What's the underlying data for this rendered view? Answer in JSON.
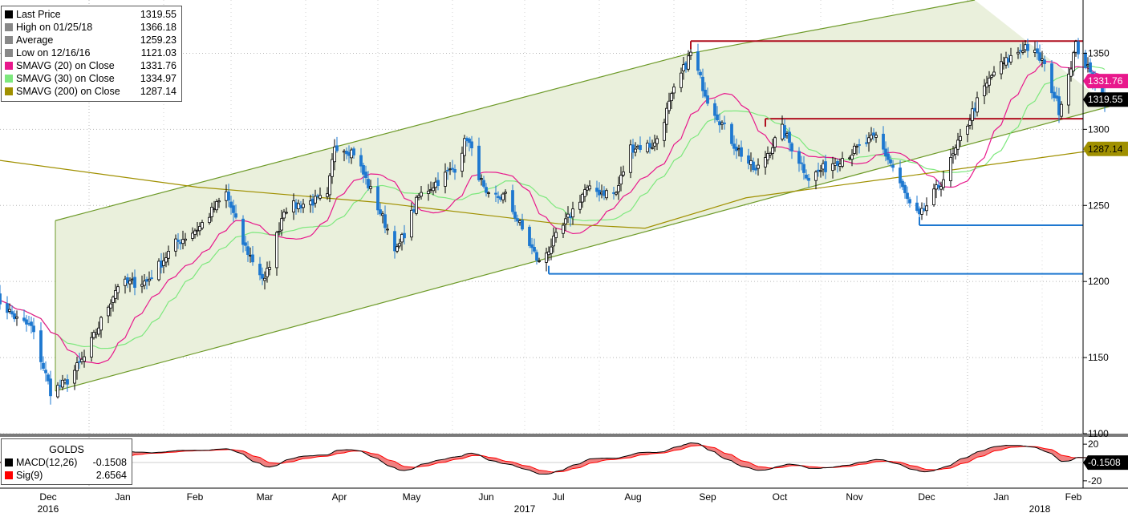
{
  "chart_data": [
    {
      "type": "candlestick",
      "title": "",
      "ylim": [
        1100,
        1385
      ],
      "y_ticks": [
        1100,
        1150,
        1200,
        1250,
        1300,
        1350
      ],
      "x_labels": {
        "months": [
          "Dec",
          "Jan",
          "Feb",
          "Mar",
          "Apr",
          "May",
          "Jun",
          "Jul",
          "Aug",
          "Sep",
          "Oct",
          "Nov",
          "Dec",
          "Jan",
          "Feb"
        ],
        "years": [
          "2016",
          "2017",
          "2018"
        ]
      },
      "legend": [
        {
          "name": "Last Price",
          "value": "1319.55",
          "color": "#000000"
        },
        {
          "name": "High on 01/25/18",
          "value": "1366.18",
          "color": "#888888"
        },
        {
          "name": "Average",
          "value": "1259.23",
          "color": "#888888"
        },
        {
          "name": "Low on 12/16/16",
          "value": "1121.03",
          "color": "#888888"
        },
        {
          "name": "SMAVG (20) on Close",
          "value": "1331.76",
          "color": "#e8188c"
        },
        {
          "name": "SMAVG (30) on Close",
          "value": "1334.97",
          "color": "#7de87d"
        },
        {
          "name": "SMAVG (200) on Close",
          "value": "1287.14",
          "color": "#a09000"
        }
      ],
      "price_anchors": [
        [
          "2016-11-23",
          1190
        ],
        [
          "2016-12-02",
          1175
        ],
        [
          "2016-12-08",
          1170
        ],
        [
          "2016-12-16",
          1128
        ],
        [
          "2016-12-22",
          1133
        ],
        [
          "2016-12-30",
          1150
        ],
        [
          "2017-01-13",
          1198
        ],
        [
          "2017-01-25",
          1200
        ],
        [
          "2017-02-06",
          1225
        ],
        [
          "2017-02-16",
          1236
        ],
        [
          "2017-02-27",
          1258
        ],
        [
          "2017-03-06",
          1225
        ],
        [
          "2017-03-15",
          1200
        ],
        [
          "2017-03-23",
          1248
        ],
        [
          "2017-04-10",
          1255
        ],
        [
          "2017-04-13",
          1290
        ],
        [
          "2017-04-21",
          1285
        ],
        [
          "2017-05-09",
          1220
        ],
        [
          "2017-05-18",
          1256
        ],
        [
          "2017-06-02",
          1275
        ],
        [
          "2017-06-07",
          1295
        ],
        [
          "2017-06-15",
          1255
        ],
        [
          "2017-06-23",
          1256
        ],
        [
          "2017-07-07",
          1212
        ],
        [
          "2017-07-17",
          1236
        ],
        [
          "2017-07-26",
          1260
        ],
        [
          "2017-08-08",
          1258
        ],
        [
          "2017-08-14",
          1288
        ],
        [
          "2017-08-24",
          1290
        ],
        [
          "2017-09-01",
          1325
        ],
        [
          "2017-09-08",
          1350
        ],
        [
          "2017-09-15",
          1320
        ],
        [
          "2017-09-26",
          1290
        ],
        [
          "2017-10-05",
          1272
        ],
        [
          "2017-10-16",
          1300
        ],
        [
          "2017-10-27",
          1268
        ],
        [
          "2017-11-06",
          1278
        ],
        [
          "2017-11-14",
          1285
        ],
        [
          "2017-11-24",
          1295
        ],
        [
          "2017-12-01",
          1275
        ],
        [
          "2017-12-08",
          1250
        ],
        [
          "2017-12-12",
          1242
        ],
        [
          "2017-12-22",
          1268
        ],
        [
          "2018-01-04",
          1315
        ],
        [
          "2018-01-12",
          1338
        ],
        [
          "2018-01-25",
          1355
        ],
        [
          "2018-02-01",
          1345
        ],
        [
          "2018-02-08",
          1313
        ],
        [
          "2018-02-15",
          1355
        ],
        [
          "2018-02-23",
          1330
        ],
        [
          "2018-02-27",
          1319.55
        ]
      ],
      "trend_channel": {
        "upper": [
          [
            "2016-12-18",
            1240
          ],
          [
            "2017-09-08",
            1350
          ],
          [
            "2018-01-04",
            1385
          ]
        ],
        "lower": [
          [
            "2016-12-18",
            1128
          ],
          [
            "2017-11-20",
            1272
          ],
          [
            "2018-03-01",
            1315
          ]
        ]
      },
      "resistance_lines": [
        {
          "from": "2017-09-08",
          "to": "2018-03-06",
          "value": 1358,
          "color": "#b01020"
        },
        {
          "from": "2017-10-09",
          "to": "2018-03-06",
          "value": 1307,
          "color": "#b01020"
        }
      ],
      "support_lines": [
        {
          "from": "2017-07-11",
          "to": "2018-03-06",
          "value": 1205,
          "color": "#1e78d0"
        },
        {
          "from": "2017-12-12",
          "to": "2018-03-06",
          "value": 1237,
          "color": "#1e78d0"
        }
      ],
      "price_tags": [
        {
          "value": 1331.76,
          "label": "1331.76",
          "bg": "#e8188c",
          "fg": "#ffffff"
        },
        {
          "value": 1319.55,
          "label": "1319.55",
          "bg": "#000000",
          "fg": "#ffffff"
        },
        {
          "value": 1287.14,
          "label": "1287.14",
          "bg": "#a09000",
          "fg": "#000000"
        }
      ]
    },
    {
      "type": "line",
      "title": "GOLDS",
      "ylim": [
        -28,
        28
      ],
      "y_ticks": [
        -20,
        20
      ],
      "legend": [
        {
          "name": "MACD(12,26)",
          "value": "-0.1508",
          "color": "#000000"
        },
        {
          "name": "Sig(9)",
          "value": "2.6564",
          "color": "#ff0000"
        }
      ],
      "tag": {
        "value": -0.1508,
        "label": "-0.1508",
        "bg": "#000000",
        "fg": "#ffffff"
      }
    }
  ],
  "colors": {
    "candle_up": "#000000",
    "candle_down": "#1e78d0",
    "channel_fill": "#eaf0dc",
    "channel_line": "#6d9a28"
  }
}
